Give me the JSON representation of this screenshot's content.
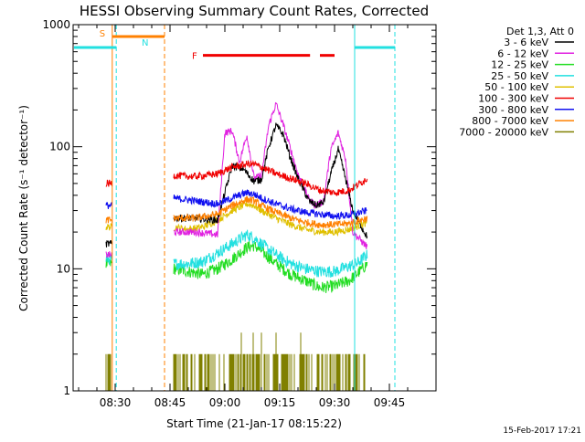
{
  "chart_data": {
    "type": "line",
    "title": "HESSI Observing Summary Count Rates, Corrected",
    "xlabel": "Start Time (21-Jan-17 08:15:22)",
    "ylabel": "Corrected Count Rate (s⁻¹ detector⁻¹)",
    "y_scale": "log",
    "ylim": [
      1,
      1000
    ],
    "xlim_minutes_after_0815": [
      0,
      100
    ],
    "x_ticks": [
      {
        "label": "08:30",
        "t": 15
      },
      {
        "label": "08:45",
        "t": 30
      },
      {
        "label": "09:00",
        "t": 45
      },
      {
        "label": "09:15",
        "t": 60
      },
      {
        "label": "09:30",
        "t": 75
      },
      {
        "label": "09:45",
        "t": 90
      }
    ],
    "y_ticks": [
      {
        "label": "1",
        "v": 1
      },
      {
        "label": "10",
        "v": 10
      },
      {
        "label": "100",
        "v": 100
      },
      {
        "label": "1000",
        "v": 1000
      }
    ],
    "legend": {
      "header": "Det 1,3, Att 0",
      "entries": [
        {
          "label": "3 - 6 keV",
          "color": "#000000"
        },
        {
          "label": "6 - 12 keV",
          "color": "#e020e0"
        },
        {
          "label": "12 - 25 keV",
          "color": "#22dd22"
        },
        {
          "label": "25 - 50 keV",
          "color": "#22e0e0"
        },
        {
          "label": "50 - 100 keV",
          "color": "#e0c000"
        },
        {
          "label": "100 - 300 keV",
          "color": "#f00000"
        },
        {
          "label": "300 - 800 keV",
          "color": "#1010f0"
        },
        {
          "label": "800 - 7000 keV",
          "color": "#ff8000"
        },
        {
          "label": "7000 - 20000 keV",
          "color": "#808000"
        }
      ]
    },
    "flags": [
      {
        "label": "S",
        "color": "#ff8000",
        "t_start": 14.2,
        "t_end": 28.5,
        "y": 800
      },
      {
        "label": "N",
        "color": "#22e0e0",
        "t_start": -2.3,
        "t_end": 15.3,
        "y": 650
      },
      {
        "label": "F",
        "color": "#f00000",
        "t_start": 39,
        "t_end": 68.3,
        "y": 560
      },
      {
        "label": "",
        "color": "#f00000",
        "t_start": 71,
        "t_end": 75,
        "y": 560
      },
      {
        "label": "",
        "color": "#22e0e0",
        "t_start": 80.5,
        "t_end": 91.5,
        "y": 650
      }
    ],
    "vlines": [
      {
        "t": 14.2,
        "color": "#ff8000",
        "style": "solid"
      },
      {
        "t": 15.3,
        "color": "#22e0e0",
        "style": "dashed"
      },
      {
        "t": 28.5,
        "color": "#ff8000",
        "style": "dashed"
      },
      {
        "t": 80.5,
        "color": "#22e0e0",
        "style": "solid"
      },
      {
        "t": 91.5,
        "color": "#22e0e0",
        "style": "dashed"
      }
    ],
    "segments": [
      [
        12.5,
        14.2
      ],
      [
        31,
        84
      ]
    ],
    "series": [
      {
        "name": "3 - 6 keV",
        "color": "#000000",
        "points": [
          [
            12.5,
            16
          ],
          [
            14.2,
            16
          ],
          [
            31,
            26
          ],
          [
            37,
            26
          ],
          [
            43,
            25
          ],
          [
            47,
            70
          ],
          [
            50,
            66
          ],
          [
            53,
            52
          ],
          [
            55,
            54
          ],
          [
            57,
            100
          ],
          [
            59,
            150
          ],
          [
            61,
            125
          ],
          [
            63,
            80
          ],
          [
            65,
            55
          ],
          [
            68,
            36
          ],
          [
            70,
            33
          ],
          [
            72,
            35
          ],
          [
            74,
            60
          ],
          [
            76,
            95
          ],
          [
            78,
            55
          ],
          [
            80,
            30
          ],
          [
            84,
            18
          ]
        ]
      },
      {
        "name": "6 - 12 keV",
        "color": "#e020e0",
        "points": [
          [
            12.5,
            13
          ],
          [
            14.2,
            13
          ],
          [
            31,
            20
          ],
          [
            37,
            20
          ],
          [
            43,
            19
          ],
          [
            45,
            130
          ],
          [
            47,
            135
          ],
          [
            49,
            75
          ],
          [
            51,
            125
          ],
          [
            53,
            55
          ],
          [
            55,
            58
          ],
          [
            57,
            150
          ],
          [
            59,
            225
          ],
          [
            61,
            150
          ],
          [
            63,
            95
          ],
          [
            65,
            60
          ],
          [
            68,
            37
          ],
          [
            70,
            33
          ],
          [
            72,
            36
          ],
          [
            74,
            95
          ],
          [
            76,
            130
          ],
          [
            78,
            80
          ],
          [
            80,
            20
          ],
          [
            84,
            15
          ]
        ]
      },
      {
        "name": "12 - 25 keV",
        "color": "#22dd22",
        "points": [
          [
            12.5,
            11
          ],
          [
            14.2,
            11
          ],
          [
            31,
            10
          ],
          [
            35,
            9.5
          ],
          [
            39,
            9
          ],
          [
            43,
            10
          ],
          [
            47,
            12
          ],
          [
            51,
            15
          ],
          [
            53,
            15.5
          ],
          [
            55,
            14
          ],
          [
            59,
            11
          ],
          [
            63,
            9
          ],
          [
            67,
            8
          ],
          [
            71,
            7
          ],
          [
            75,
            7.2
          ],
          [
            79,
            8
          ],
          [
            81,
            9
          ],
          [
            84,
            11
          ]
        ]
      },
      {
        "name": "25 - 50 keV",
        "color": "#22e0e0",
        "points": [
          [
            12.5,
            12
          ],
          [
            14.2,
            12
          ],
          [
            31,
            11
          ],
          [
            35,
            11
          ],
          [
            39,
            11.5
          ],
          [
            43,
            13.5
          ],
          [
            47,
            16
          ],
          [
            51,
            19
          ],
          [
            53,
            18
          ],
          [
            55,
            16
          ],
          [
            59,
            13
          ],
          [
            63,
            11
          ],
          [
            67,
            10
          ],
          [
            71,
            9.5
          ],
          [
            75,
            9.5
          ],
          [
            79,
            10.5
          ],
          [
            81,
            11
          ],
          [
            84,
            13
          ]
        ]
      },
      {
        "name": "50 - 100 keV",
        "color": "#e0c000",
        "points": [
          [
            12.5,
            22
          ],
          [
            14.2,
            22
          ],
          [
            31,
            22
          ],
          [
            35,
            21
          ],
          [
            39,
            22
          ],
          [
            43,
            25
          ],
          [
            47,
            30
          ],
          [
            51,
            34
          ],
          [
            53,
            33
          ],
          [
            55,
            30
          ],
          [
            59,
            26
          ],
          [
            63,
            23
          ],
          [
            67,
            21
          ],
          [
            71,
            20
          ],
          [
            75,
            20
          ],
          [
            79,
            21
          ],
          [
            84,
            24
          ]
        ]
      },
      {
        "name": "100 - 300 keV",
        "color": "#f00000",
        "points": [
          [
            12.5,
            50
          ],
          [
            14.2,
            50
          ],
          [
            31,
            58
          ],
          [
            37,
            57
          ],
          [
            43,
            60
          ],
          [
            47,
            68
          ],
          [
            51,
            72
          ],
          [
            53,
            72
          ],
          [
            55,
            68
          ],
          [
            59,
            60
          ],
          [
            63,
            55
          ],
          [
            67,
            50
          ],
          [
            71,
            44
          ],
          [
            75,
            42
          ],
          [
            79,
            44
          ],
          [
            84,
            55
          ]
        ]
      },
      {
        "name": "300 - 800 keV",
        "color": "#1010f0",
        "points": [
          [
            12.5,
            33
          ],
          [
            14.2,
            33
          ],
          [
            31,
            38
          ],
          [
            37,
            36
          ],
          [
            43,
            34
          ],
          [
            47,
            38
          ],
          [
            51,
            42
          ],
          [
            53,
            41
          ],
          [
            55,
            38
          ],
          [
            59,
            34
          ],
          [
            63,
            31
          ],
          [
            67,
            29
          ],
          [
            71,
            28
          ],
          [
            75,
            27
          ],
          [
            79,
            27.5
          ],
          [
            84,
            30
          ]
        ]
      },
      {
        "name": "800 - 7000 keV",
        "color": "#ff8000",
        "points": [
          [
            12.5,
            25
          ],
          [
            14.2,
            25
          ],
          [
            31,
            26
          ],
          [
            37,
            26
          ],
          [
            43,
            28
          ],
          [
            47,
            33
          ],
          [
            51,
            37
          ],
          [
            53,
            36
          ],
          [
            55,
            33
          ],
          [
            59,
            29
          ],
          [
            63,
            26
          ],
          [
            67,
            24
          ],
          [
            71,
            23
          ],
          [
            75,
            23
          ],
          [
            79,
            23.5
          ],
          [
            84,
            26
          ]
        ]
      },
      {
        "name": "7000 - 20000 keV",
        "color": "#808000",
        "style": "spiky",
        "points": [
          [
            12.5,
            1
          ],
          [
            14.2,
            1
          ],
          [
            31,
            1
          ],
          [
            84,
            1
          ]
        ],
        "spike_values": [
          2,
          3
        ]
      }
    ],
    "grid": false,
    "legend_placement": "right"
  },
  "footer": {
    "timestamp": "15-Feb-2017 17:21"
  }
}
